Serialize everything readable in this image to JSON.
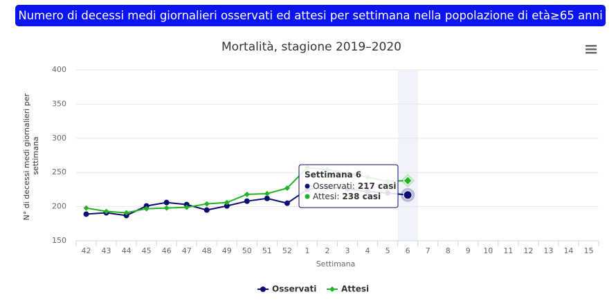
{
  "header": {
    "title": "Numero di decessi medi giornalieri osservati ed attesi per settimana nella popolazione di età≥65 anni"
  },
  "chart_data": {
    "type": "line",
    "title": "Mortalità, stagione 2019–2020",
    "x_label": "Settimana",
    "y_label": "N° di decessi medi giornalieri per settimana",
    "categories": [
      "42",
      "43",
      "44",
      "45",
      "46",
      "47",
      "48",
      "49",
      "50",
      "51",
      "52",
      "1",
      "2",
      "3",
      "4",
      "5",
      "6",
      "7",
      "8",
      "9",
      "10",
      "11",
      "12",
      "13",
      "14",
      "15"
    ],
    "series": [
      {
        "name": "Osservati",
        "color": "#0b0b70",
        "marker": "circle",
        "values": [
          189,
          191,
          187,
          201,
          206,
          203,
          195,
          201,
          208,
          212,
          205,
          225,
          229,
          226,
          222,
          220,
          217,
          null,
          null,
          null,
          null,
          null,
          null,
          null,
          null,
          null
        ]
      },
      {
        "name": "Attesi",
        "color": "#22b322",
        "marker": "diamond",
        "values": [
          198,
          193,
          191,
          197,
          198,
          199,
          204,
          206,
          218,
          219,
          227,
          257,
          254,
          249,
          243,
          237,
          238,
          null,
          null,
          null,
          null,
          null,
          null,
          null,
          null,
          null
        ]
      }
    ],
    "ylim": [
      150,
      400
    ],
    "yticks": [
      150,
      200,
      250,
      300,
      350,
      400
    ],
    "grid": true,
    "legend": "bottom",
    "tooltip": {
      "title": "Settimana 6",
      "rows": [
        {
          "label": "Osservati:",
          "value": "217 casi"
        },
        {
          "label": "Attesi:",
          "value": "238 casi"
        }
      ]
    }
  }
}
